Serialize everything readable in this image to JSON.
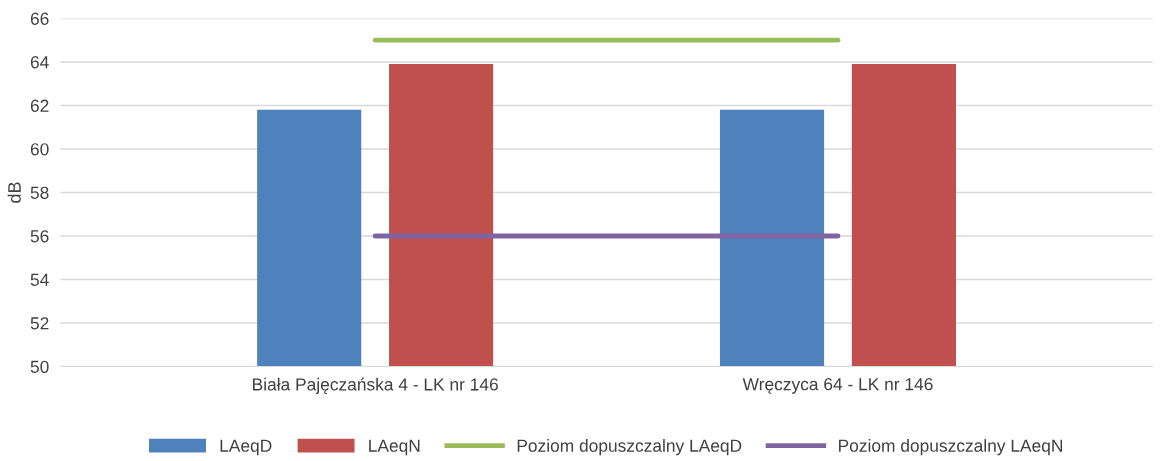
{
  "chart_data": {
    "type": "bar",
    "ylabel": "dB",
    "categories": [
      "Biała Pajęczańska 4 - LK nr 146",
      "Wręczyca 64 - LK nr 146"
    ],
    "series": [
      {
        "name": "LAeqD",
        "color": "#4f81bd",
        "values": [
          61.8,
          61.8
        ]
      },
      {
        "name": "LAeqN",
        "color": "#c0504d",
        "values": [
          63.9,
          63.9
        ]
      },
      {
        "name": "Poziom dopuszczalny LAeqD",
        "color": "#9bbb59",
        "type": "line",
        "values": [
          65,
          65
        ]
      },
      {
        "name": "Poziom dopuszczalny LAeqN",
        "color": "#8064a2",
        "type": "line",
        "values": [
          56,
          56
        ]
      }
    ],
    "ylim": [
      50,
      66
    ],
    "yticks": [
      50,
      52,
      54,
      56,
      58,
      60,
      62,
      64,
      66
    ],
    "grid": "y",
    "legend": "bottom"
  }
}
